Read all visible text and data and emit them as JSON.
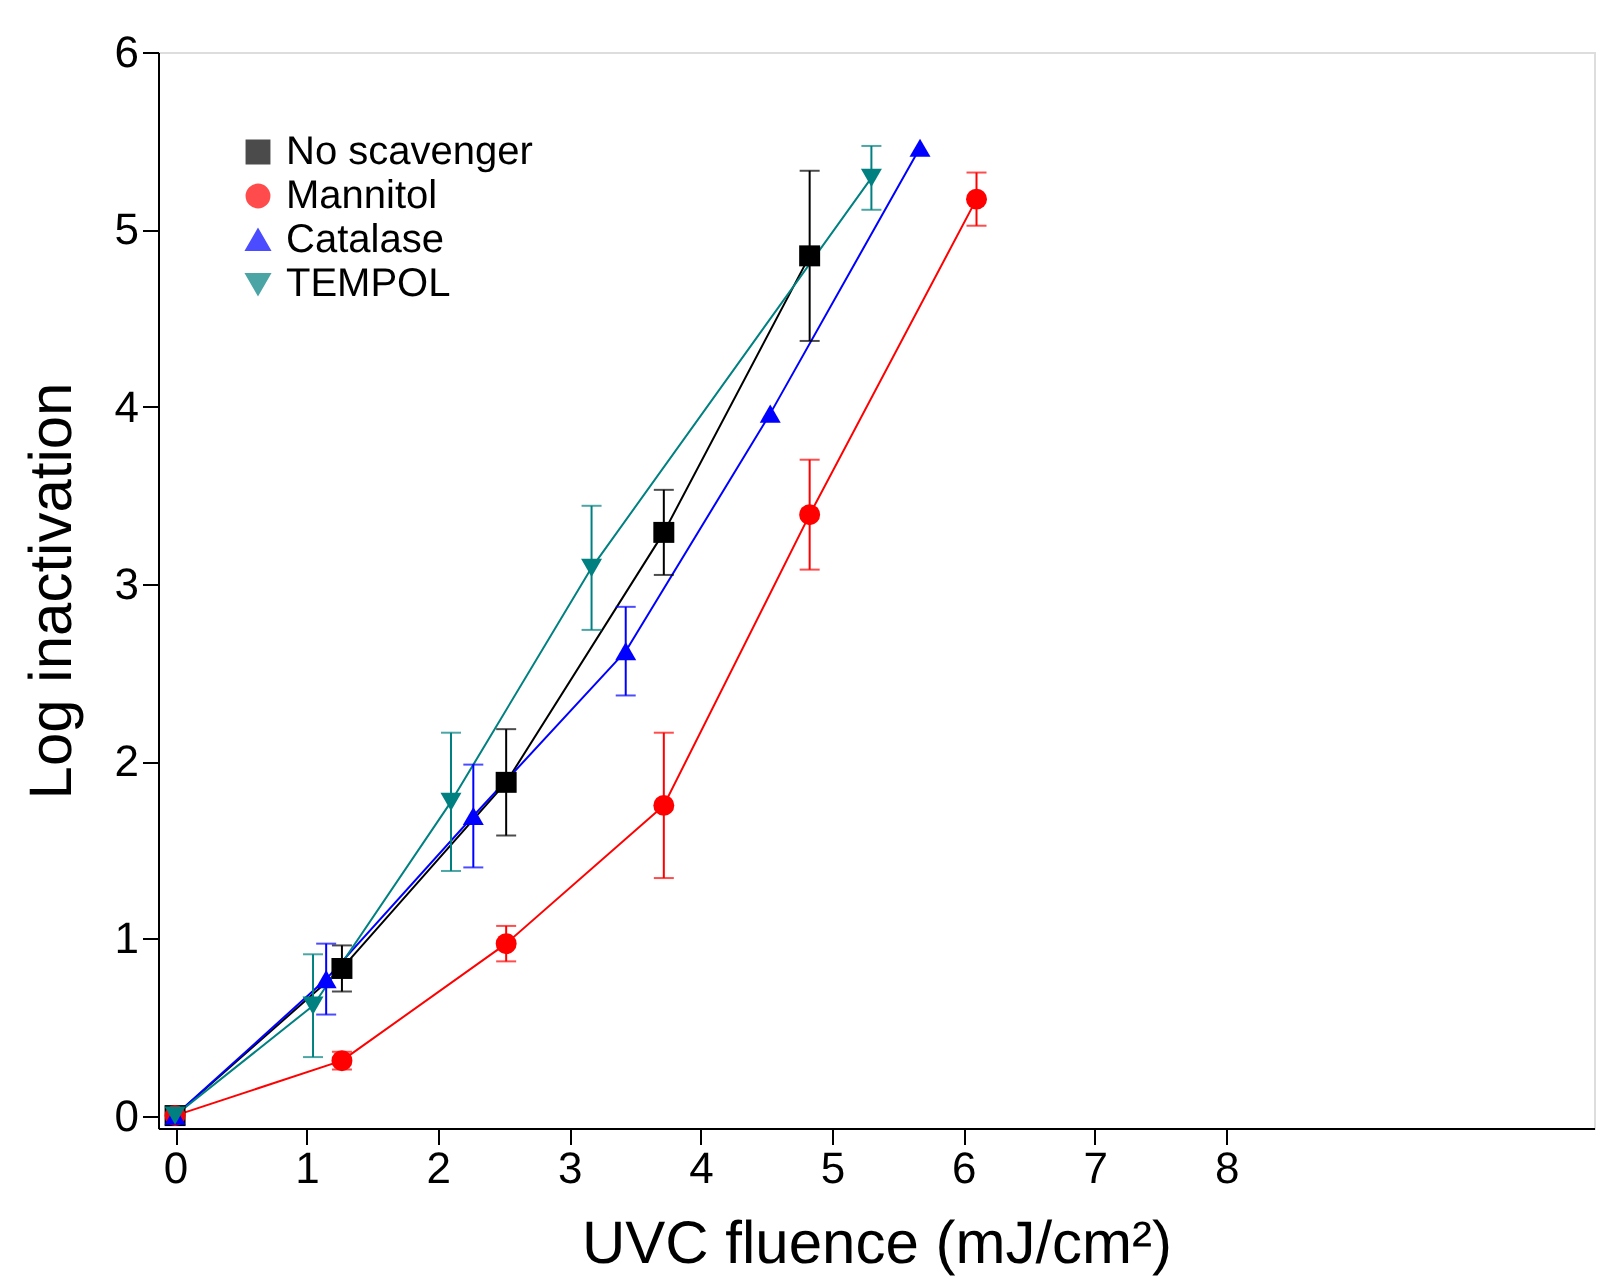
{
  "chart_data": {
    "type": "line",
    "xlabel": "UVC fluence (mJ/cm²)",
    "ylabel": "Log inactivation",
    "xlim": [
      -0.13,
      10.8
    ],
    "xticks": [
      0,
      1,
      2,
      3,
      4,
      5,
      6,
      7,
      8
    ],
    "ylim": [
      -0.07,
      6
    ],
    "yticks": [
      0,
      1,
      2,
      3,
      4,
      5,
      6
    ],
    "grid": false,
    "legend": "top left",
    "line_style": "solid",
    "series": [
      {
        "name": "No scavenger",
        "color": "#000000",
        "marker": "square",
        "x": [
          0,
          1.27,
          2.52,
          3.72,
          4.83
        ],
        "values": [
          0,
          0.83,
          1.88,
          3.29,
          4.85
        ],
        "errors": [
          null,
          0.13,
          0.3,
          0.24,
          0.48
        ]
      },
      {
        "name": "Mannitol",
        "color": "#ff0000",
        "marker": "circle",
        "x": [
          0,
          1.27,
          2.52,
          3.72,
          4.83,
          6.1
        ],
        "values": [
          0,
          0.31,
          0.97,
          1.75,
          3.39,
          5.17
        ],
        "errors": [
          null,
          0.05,
          0.1,
          0.41,
          0.31,
          0.15
        ]
      },
      {
        "name": "Catalase",
        "color": "#0000ff",
        "marker": "triangle",
        "x": [
          0,
          1.15,
          2.27,
          3.43,
          4.53,
          5.67
        ],
        "values": [
          0,
          0.77,
          1.69,
          2.62,
          3.96,
          5.46
        ],
        "errors": [
          null,
          0.2,
          0.29,
          0.25,
          null,
          null
        ]
      },
      {
        "name": "TEMPOL",
        "color": "#008080",
        "marker": "triangle-down",
        "x": [
          0,
          1.05,
          2.1,
          3.17,
          5.3
        ],
        "values": [
          0,
          0.62,
          1.77,
          3.09,
          5.29
        ],
        "errors": [
          null,
          0.29,
          0.39,
          0.35,
          0.18
        ]
      }
    ]
  }
}
